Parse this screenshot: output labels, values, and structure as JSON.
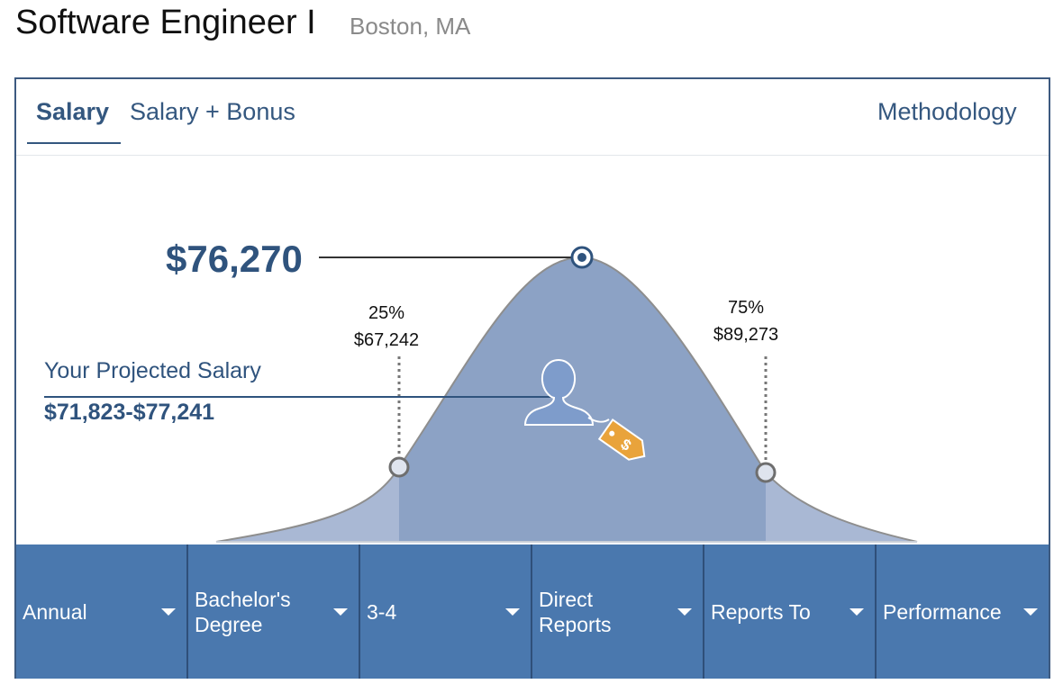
{
  "header": {
    "job_title": "Software Engineer I",
    "location": "Boston, MA"
  },
  "tabs": [
    {
      "label": "Salary",
      "active": true
    },
    {
      "label": "Salary + Bonus",
      "active": false
    },
    {
      "label": "Methodology",
      "active": false
    }
  ],
  "chart": {
    "median": "$76,270",
    "p25_label": "25%",
    "p25_value": "$67,242",
    "p75_label": "75%",
    "p75_value": "$89,273",
    "projected_title": "Your Projected Salary",
    "projected_range": "$71,823-$77,241"
  },
  "filters": [
    {
      "label": "Annual"
    },
    {
      "label": "Bachelor's Degree"
    },
    {
      "label": "3-4"
    },
    {
      "label": "Direct Reports"
    },
    {
      "label": "Reports To"
    },
    {
      "label": "Performance"
    }
  ],
  "colors": {
    "accent": "#34577f",
    "curve_fill": "#8ca2c5",
    "curve_tails": "#a9b8d4",
    "filter_bar": "#4a78ae",
    "tag": "#e9a33b"
  },
  "icons": [
    "person-icon",
    "price-tag-icon",
    "chevron-down-icon"
  ]
}
